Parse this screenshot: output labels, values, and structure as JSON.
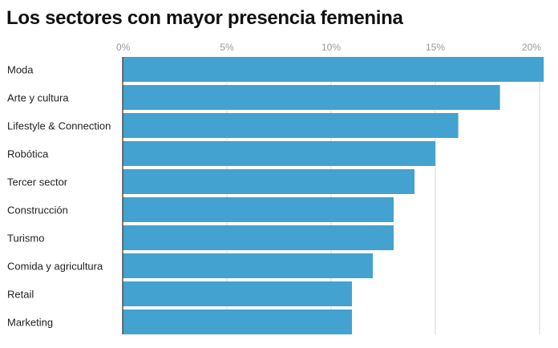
{
  "chart_data": {
    "type": "bar",
    "orientation": "horizontal",
    "title": "Los sectores con mayor presencia femenina",
    "categories": [
      "Moda",
      "Arte y cultura",
      "Lifestyle & Connection",
      "Robótica",
      "Tercer sector",
      "Construcción",
      "Turismo",
      "Comida y agricultura",
      "Retail",
      "Marketing"
    ],
    "values": [
      20.2,
      18.1,
      16.1,
      15,
      14,
      13,
      13,
      12,
      11,
      11
    ],
    "unit": "%",
    "xlim": [
      0,
      20
    ],
    "x_ticks": [
      0,
      5,
      10,
      15,
      20
    ],
    "x_tick_labels": [
      "0%",
      "5%",
      "10%",
      "15%",
      "20%"
    ],
    "axis_position": "top",
    "grid": true,
    "bar_color": "#43a2cf"
  }
}
